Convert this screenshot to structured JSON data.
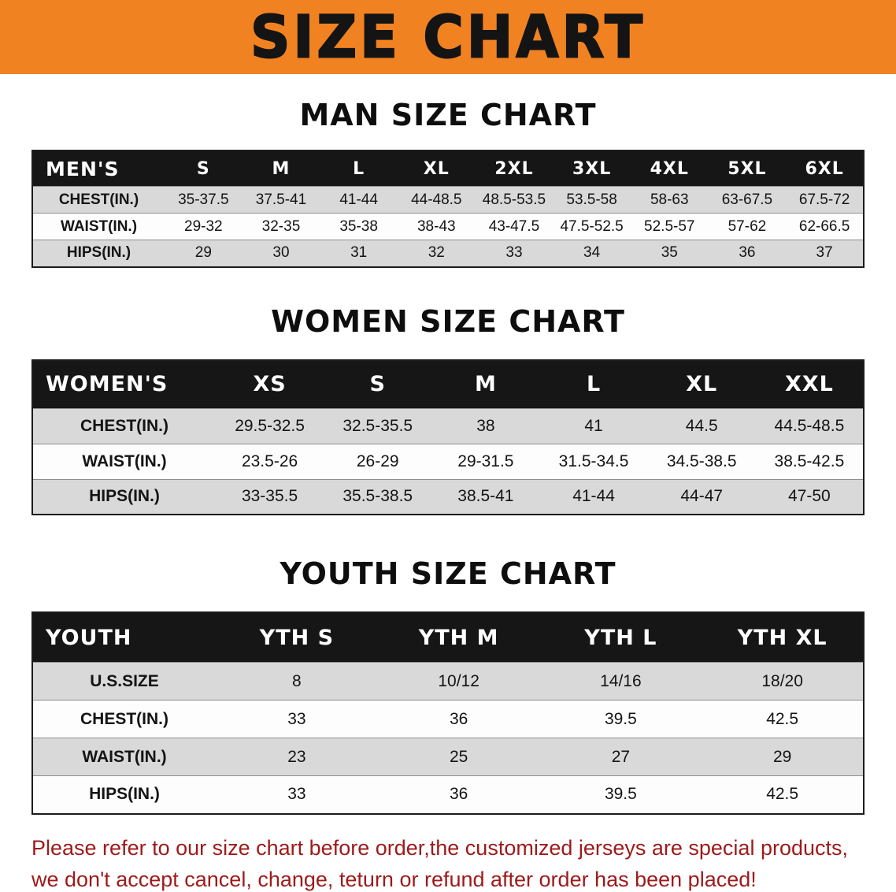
{
  "banner": {
    "title": "SIZE CHART"
  },
  "colors": {
    "banner_bg": "#f08222",
    "table_header_bar": "#161616",
    "shaded_row": "#d9d9d9",
    "note_text": "#9e1a1a"
  },
  "chart_data": [
    {
      "type": "table",
      "title": "MAN SIZE CHART",
      "header": [
        "MEN'S",
        "S",
        "M",
        "L",
        "XL",
        "2XL",
        "3XL",
        "4XL",
        "5XL",
        "6XL"
      ],
      "rows": [
        {
          "label": "CHEST(IN.)",
          "values": [
            "35-37.5",
            "37.5-41",
            "41-44",
            "44-48.5",
            "48.5-53.5",
            "53.5-58",
            "58-63",
            "63-67.5",
            "67.5-72"
          ]
        },
        {
          "label": "WAIST(IN.)",
          "values": [
            "29-32",
            "32-35",
            "35-38",
            "38-43",
            "43-47.5",
            "47.5-52.5",
            "52.5-57",
            "57-62",
            "62-66.5"
          ]
        },
        {
          "label": "HIPS(IN.)",
          "values": [
            "29",
            "30",
            "31",
            "32",
            "33",
            "34",
            "35",
            "36",
            "37"
          ]
        }
      ]
    },
    {
      "type": "table",
      "title": "WOMEN SIZE CHART",
      "header": [
        "WOMEN'S",
        "XS",
        "S",
        "M",
        "L",
        "XL",
        "XXL"
      ],
      "rows": [
        {
          "label": "CHEST(IN.)",
          "values": [
            "29.5-32.5",
            "32.5-35.5",
            "38",
            "41",
            "44.5",
            "44.5-48.5"
          ]
        },
        {
          "label": "WAIST(IN.)",
          "values": [
            "23.5-26",
            "26-29",
            "29-31.5",
            "31.5-34.5",
            "34.5-38.5",
            "38.5-42.5"
          ]
        },
        {
          "label": "HIPS(IN.)",
          "values": [
            "33-35.5",
            "35.5-38.5",
            "38.5-41",
            "41-44",
            "44-47",
            "47-50"
          ]
        }
      ]
    },
    {
      "type": "table",
      "title": "YOUTH SIZE CHART",
      "header": [
        "YOUTH",
        "YTH S",
        "YTH M",
        "YTH L",
        "YTH XL"
      ],
      "rows": [
        {
          "label": "U.S.SIZE",
          "values": [
            "8",
            "10/12",
            "14/16",
            "18/20"
          ]
        },
        {
          "label": "CHEST(IN.)",
          "values": [
            "33",
            "36",
            "39.5",
            "42.5"
          ]
        },
        {
          "label": "WAIST(IN.)",
          "values": [
            "23",
            "25",
            "27",
            "29"
          ]
        },
        {
          "label": "HIPS(IN.)",
          "values": [
            "33",
            "36",
            "39.5",
            "42.5"
          ]
        }
      ]
    }
  ],
  "footer": {
    "lines": [
      "Please refer to our size chart before order,the customized jerseys are special products,",
      "we don't accept cancel, change, teturn or refund after order has been placed!"
    ]
  }
}
